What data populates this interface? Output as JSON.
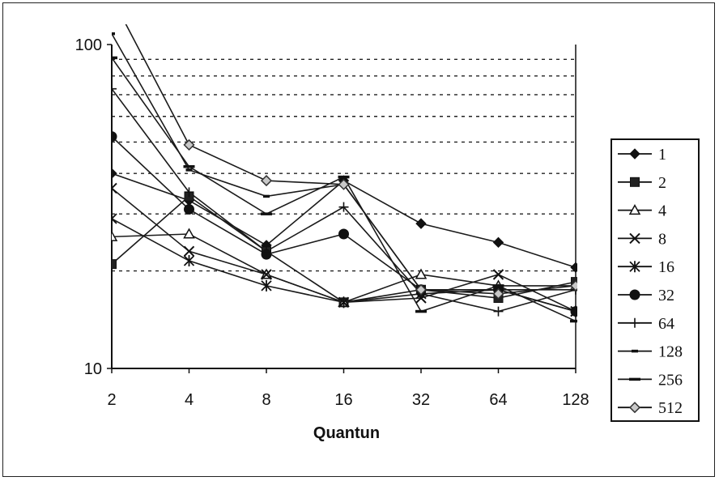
{
  "chart_data": {
    "type": "line",
    "xlabel": "Quantun",
    "ylabel": "",
    "title": "",
    "x": [
      2,
      4,
      8,
      16,
      32,
      64,
      128
    ],
    "x_tick_labels": [
      "2",
      "4",
      "8",
      "16",
      "32",
      "64",
      "128"
    ],
    "y_scale": "log",
    "ylim": [
      10,
      100
    ],
    "y_tick_labels": [
      "100",
      "10"
    ],
    "grid": "horizontal dotted",
    "legend_placement": "right",
    "series": [
      {
        "name": "1",
        "marker": "diamond",
        "values": [
          40,
          33,
          24,
          38,
          28,
          24.5,
          20.5
        ]
      },
      {
        "name": "2",
        "marker": "square",
        "values": [
          21,
          34,
          23,
          16,
          17.5,
          16.5,
          18.5
        ]
      },
      {
        "name": "4",
        "marker": "triangle",
        "values": [
          25.5,
          26,
          19.5,
          16,
          19.5,
          18,
          18
        ]
      },
      {
        "name": "8",
        "marker": "x",
        "values": [
          36,
          23,
          19.5,
          16,
          16.5,
          19.5,
          15
        ]
      },
      {
        "name": "16",
        "marker": "asterisk",
        "values": [
          29,
          21.5,
          18,
          16,
          17,
          17.5,
          15
        ]
      },
      {
        "name": "32",
        "marker": "circle",
        "values": [
          52,
          31,
          22.5,
          26,
          17.5,
          17.5,
          15
        ]
      },
      {
        "name": "64",
        "marker": "plus",
        "values": [
          73,
          35,
          23,
          31.5,
          17,
          15,
          17.5
        ]
      },
      {
        "name": "128",
        "marker": "short-dash",
        "values": [
          108,
          41,
          34,
          37,
          17.5,
          17.5,
          17.5
        ]
      },
      {
        "name": "256",
        "marker": "dash",
        "values": [
          91,
          42,
          30,
          39,
          15,
          18,
          14
        ]
      },
      {
        "name": "512",
        "marker": "diamond-outline",
        "values": [
          140,
          49,
          38,
          37,
          17.5,
          17,
          18
        ]
      }
    ]
  }
}
